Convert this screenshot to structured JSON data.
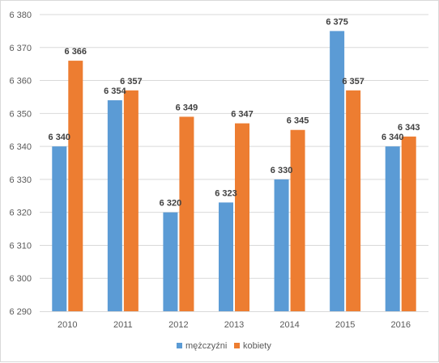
{
  "chart_data": {
    "type": "bar",
    "title": "",
    "xlabel": "",
    "ylabel": "",
    "categories": [
      "2010",
      "2011",
      "2012",
      "2013",
      "2014",
      "2015",
      "2016"
    ],
    "series": [
      {
        "name": "mężczyźni",
        "color": "#5B9BD5",
        "values": [
          6340,
          6354,
          6320,
          6323,
          6330,
          6375,
          6340
        ]
      },
      {
        "name": "kobiety",
        "color": "#ED7D31",
        "values": [
          6366,
          6357,
          6349,
          6347,
          6345,
          6357,
          6343
        ]
      }
    ],
    "ylim": [
      6290,
      6380
    ],
    "yticks": [
      6290,
      6300,
      6310,
      6320,
      6330,
      6340,
      6350,
      6360,
      6370,
      6380
    ],
    "ytick_labels": [
      "6 290",
      "6 300",
      "6 310",
      "6 320",
      "6 330",
      "6 340",
      "6 350",
      "6 360",
      "6 370",
      "6 380"
    ],
    "data_labels": [
      [
        "6 340",
        "6 354",
        "6 320",
        "6 323",
        "6 330",
        "6 375",
        "6 340"
      ],
      [
        "6 366",
        "6 357",
        "6 349",
        "6 347",
        "6 345",
        "6 357",
        "6 343"
      ]
    ],
    "grid": true,
    "legend_position": "bottom",
    "gridline_color": "#d9d9d9"
  }
}
